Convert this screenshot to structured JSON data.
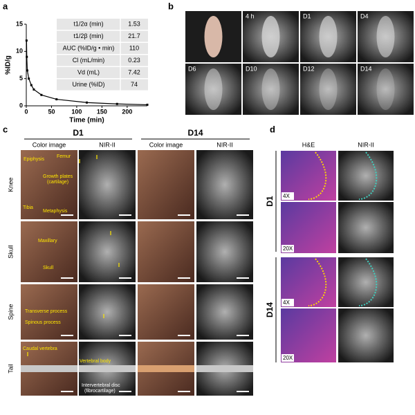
{
  "panels": {
    "labels": [
      "a",
      "b",
      "c",
      "d"
    ]
  },
  "chart_data": {
    "type": "line",
    "ylabel": "%ID/g",
    "xlabel": "Time (min)",
    "x": [
      0.5,
      1,
      2,
      5,
      10,
      15,
      30,
      60,
      120,
      180,
      240
    ],
    "values": [
      12,
      9,
      6.5,
      5,
      3.8,
      3,
      2,
      1.2,
      0.6,
      0.35,
      0.2
    ],
    "color": "#000000",
    "xlim": [
      0,
      240
    ],
    "xticks": [
      0,
      50,
      100,
      150,
      200
    ],
    "ylim": [
      0,
      15
    ],
    "yticks": [
      0,
      5,
      10,
      15
    ]
  },
  "table": {
    "rows": [
      [
        "t1/2α (min)",
        "1.53"
      ],
      [
        "t1/2β (min)",
        "21.7"
      ],
      [
        "AUC (%ID/g • min)",
        "110"
      ],
      [
        "Cl (mL/min)",
        "0.23"
      ],
      [
        "Vd (mL)",
        "7.42"
      ],
      [
        "Urine (%ID)",
        "74"
      ]
    ]
  },
  "panel_b": {
    "labels": [
      "4 h",
      "D1",
      "D4",
      "D6",
      "D10",
      "D12",
      "D14"
    ]
  },
  "panel_c": {
    "groups": [
      "D1",
      "D14"
    ],
    "columns": [
      "Color image",
      "NIR-II",
      "Color image",
      "NIR-II"
    ],
    "rows": [
      "Knee",
      "Skull",
      "Spine",
      "Tail"
    ],
    "annotations": [
      "Epiphysis",
      "Femur",
      "Growth plates",
      "(cartilage)",
      "Tibia",
      "Metaphysis",
      "Maxillary",
      "Skull",
      "Transverse process",
      "Spinous process",
      "Caudal vertebra",
      "Vertebral body",
      "Intervertebral disc",
      "(fibrocartilage)"
    ]
  },
  "panel_d": {
    "columns": [
      "H&E",
      "NIR-II"
    ],
    "groups": [
      "D1",
      "D14"
    ],
    "magnifications": [
      "4X",
      "20X",
      "4X",
      "20X"
    ]
  }
}
